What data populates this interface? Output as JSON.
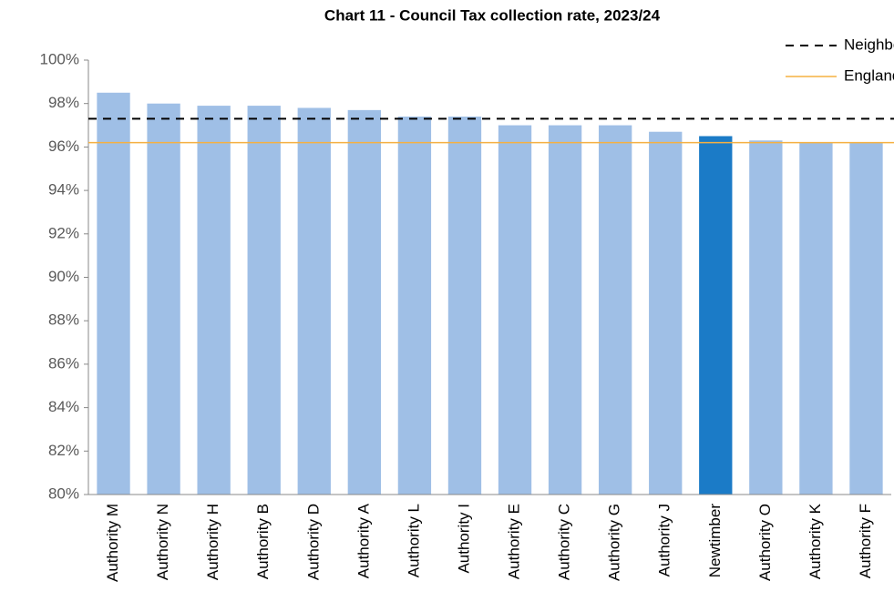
{
  "chart_data": {
    "type": "bar",
    "title": "Chart 11 - Council Tax collection rate, 2023/24",
    "categories": [
      "Authority M",
      "Authority N",
      "Authority H",
      "Authority B",
      "Authority D",
      "Authority A",
      "Authority L",
      "Authority I",
      "Authority E",
      "Authority C",
      "Authority G",
      "Authority J",
      "Newtimber",
      "Authority O",
      "Authority K",
      "Authority F"
    ],
    "values": [
      98.5,
      98.0,
      97.9,
      97.9,
      97.8,
      97.7,
      97.4,
      97.4,
      97.0,
      97.0,
      97.0,
      96.7,
      96.5,
      96.3,
      96.2,
      96.2
    ],
    "colors": [
      "#9fbfe6",
      "#9fbfe6",
      "#9fbfe6",
      "#9fbfe6",
      "#9fbfe6",
      "#9fbfe6",
      "#9fbfe6",
      "#9fbfe6",
      "#9fbfe6",
      "#9fbfe6",
      "#9fbfe6",
      "#9fbfe6",
      "#1b7bc7",
      "#9fbfe6",
      "#9fbfe6",
      "#9fbfe6"
    ],
    "ylim": [
      80,
      100
    ],
    "yticks": [
      {
        "value": 80,
        "label": "80%"
      },
      {
        "value": 82,
        "label": "82%"
      },
      {
        "value": 84,
        "label": "84%"
      },
      {
        "value": 86,
        "label": "86%"
      },
      {
        "value": 88,
        "label": "88%"
      },
      {
        "value": 90,
        "label": "90%"
      },
      {
        "value": 92,
        "label": "92%"
      },
      {
        "value": 94,
        "label": "94%"
      },
      {
        "value": 96,
        "label": "96%"
      },
      {
        "value": 98,
        "label": "98%"
      },
      {
        "value": 100,
        "label": "100%"
      }
    ],
    "reference_lines": [
      {
        "name": "Neighbour average",
        "value": 97.3,
        "color": "#000000",
        "dashed": true
      },
      {
        "name": "England average",
        "value": 96.2,
        "color": "#f5b041",
        "dashed": false
      }
    ],
    "legend": "top-right"
  }
}
